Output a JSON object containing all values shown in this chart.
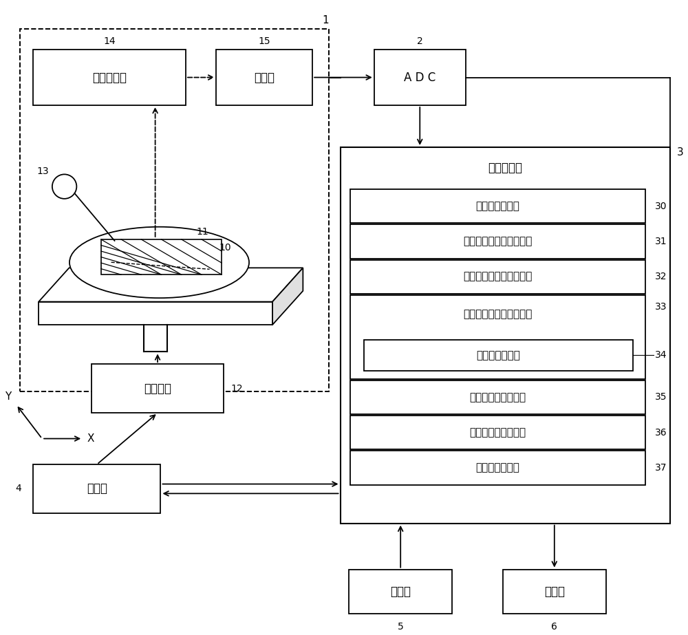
{
  "bg_color": "#ffffff",
  "box_zhiliang_fenli": "质量分离部",
  "box_jiance": "检测部",
  "box_ADC": "A D C",
  "box_tai_qudong": "台驱动部",
  "box_zhikong": "控制部",
  "box_shuru": "输入部",
  "box_xianshi": "显示部",
  "data_title": "数据处理部",
  "box30": "质谱数据保存部",
  "box31": "源自基质的峰信息获取部",
  "box32": "源自基质的峰信息存储部",
  "box33": "质量校正用基准峰检测部",
  "box34": "峰单一性判定部",
  "box35": "质量校正信息计算部",
  "box36": "质量校正信息存储部",
  "box37": "质量校正处理部",
  "axis_Y": "Y",
  "axis_X": "X",
  "lbl1": "1",
  "lbl2": "2",
  "lbl3": "3",
  "lbl4": "4",
  "lbl5": "5",
  "lbl6": "6",
  "lbl10": "10",
  "lbl11": "11",
  "lbl12": "12",
  "lbl13": "13",
  "lbl14": "14",
  "lbl15": "15",
  "lbl30": "30",
  "lbl31": "31",
  "lbl32": "32",
  "lbl33": "33",
  "lbl34": "34",
  "lbl35": "35",
  "lbl36": "36",
  "lbl37": "37"
}
